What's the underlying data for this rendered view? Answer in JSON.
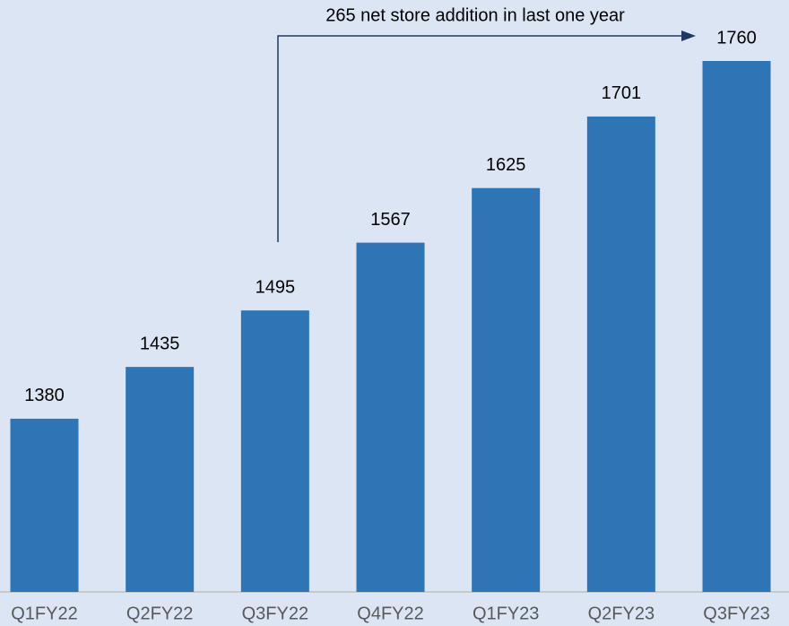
{
  "chart_data": {
    "type": "bar",
    "annotation": "265 net store addition in last one year",
    "categories": [
      "Q1FY22",
      "Q2FY22",
      "Q3FY22",
      "Q4FY22",
      "Q1FY23",
      "Q2FY23",
      "Q3FY23"
    ],
    "values": [
      1380,
      1435,
      1495,
      1567,
      1625,
      1701,
      1760
    ],
    "color": "#2e75b6",
    "ylim": [
      1196,
      1760
    ]
  }
}
